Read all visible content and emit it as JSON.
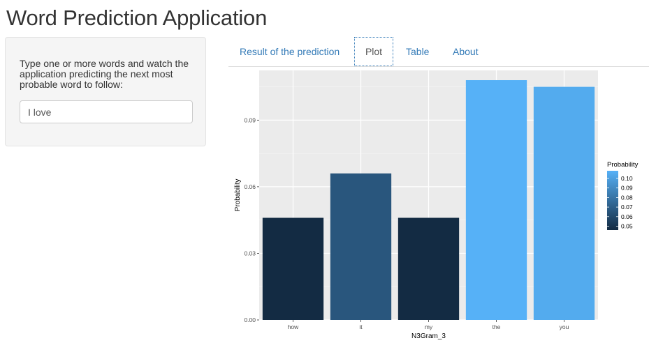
{
  "app": {
    "title": "Word Prediction Application"
  },
  "sidebar": {
    "instructions": "Type one or more words and watch the application predicting the next most probable word to follow:",
    "input_value": "I love"
  },
  "tabs": [
    {
      "label": "Result of the prediction",
      "active": false
    },
    {
      "label": "Plot",
      "active": true
    },
    {
      "label": "Table",
      "active": false
    },
    {
      "label": "About",
      "active": false
    }
  ],
  "chart_data": {
    "type": "bar",
    "categories": [
      "how",
      "it",
      "my",
      "the",
      "you"
    ],
    "values": [
      0.046,
      0.066,
      0.046,
      0.108,
      0.105
    ],
    "xlabel": "N3Gram_3",
    "ylabel": "Probability",
    "ylim": [
      0,
      0.1124
    ],
    "yticks": [
      "0.00",
      "0.03",
      "0.06",
      "0.09"
    ],
    "grid": true,
    "legend": {
      "title": "Probability",
      "placement": "right",
      "labels": [
        "0.10",
        "0.09",
        "0.08",
        "0.07",
        "0.06",
        "0.05"
      ],
      "color_low": "#132B43",
      "color_high": "#56B1F7"
    },
    "panel_background": "#ebebeb"
  }
}
